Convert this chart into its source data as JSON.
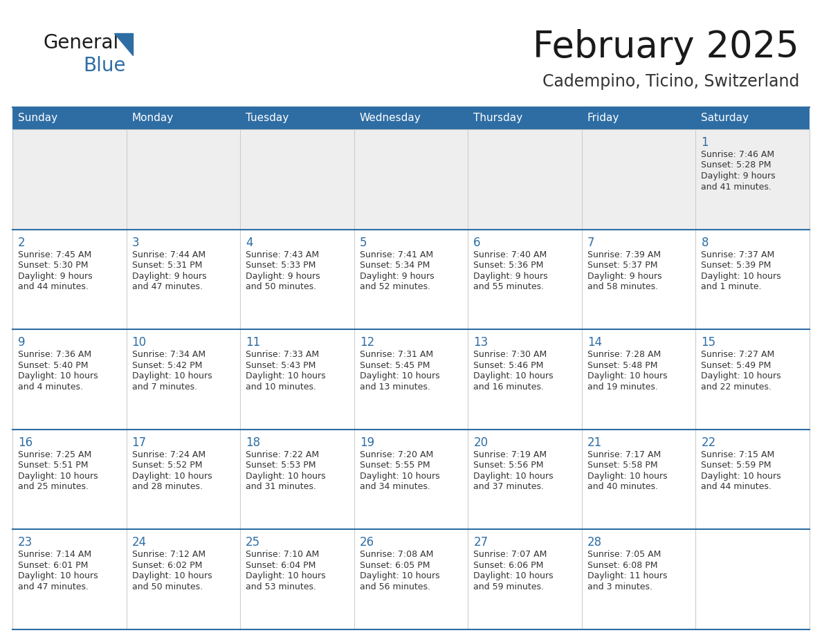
{
  "title": "February 2025",
  "subtitle": "Cadempino, Ticino, Switzerland",
  "header_bg": "#2E6DA4",
  "header_text_color": "#FFFFFF",
  "row_separator_color": "#2E6DA4",
  "cell_bg_row0": "#EEEEEE",
  "cell_bg_other": "#FFFFFF",
  "title_color": "#1a1a1a",
  "subtitle_color": "#333333",
  "day_number_color": "#2E6DA4",
  "cell_text_color": "#333333",
  "days_of_week": [
    "Sunday",
    "Monday",
    "Tuesday",
    "Wednesday",
    "Thursday",
    "Friday",
    "Saturday"
  ],
  "calendar_data": [
    [
      null,
      null,
      null,
      null,
      null,
      null,
      {
        "day": 1,
        "sunrise": "7:46 AM",
        "sunset": "5:28 PM",
        "daylight": "9 hours",
        "daylight2": "and 41 minutes."
      }
    ],
    [
      {
        "day": 2,
        "sunrise": "7:45 AM",
        "sunset": "5:30 PM",
        "daylight": "9 hours",
        "daylight2": "and 44 minutes."
      },
      {
        "day": 3,
        "sunrise": "7:44 AM",
        "sunset": "5:31 PM",
        "daylight": "9 hours",
        "daylight2": "and 47 minutes."
      },
      {
        "day": 4,
        "sunrise": "7:43 AM",
        "sunset": "5:33 PM",
        "daylight": "9 hours",
        "daylight2": "and 50 minutes."
      },
      {
        "day": 5,
        "sunrise": "7:41 AM",
        "sunset": "5:34 PM",
        "daylight": "9 hours",
        "daylight2": "and 52 minutes."
      },
      {
        "day": 6,
        "sunrise": "7:40 AM",
        "sunset": "5:36 PM",
        "daylight": "9 hours",
        "daylight2": "and 55 minutes."
      },
      {
        "day": 7,
        "sunrise": "7:39 AM",
        "sunset": "5:37 PM",
        "daylight": "9 hours",
        "daylight2": "and 58 minutes."
      },
      {
        "day": 8,
        "sunrise": "7:37 AM",
        "sunset": "5:39 PM",
        "daylight": "10 hours",
        "daylight2": "and 1 minute."
      }
    ],
    [
      {
        "day": 9,
        "sunrise": "7:36 AM",
        "sunset": "5:40 PM",
        "daylight": "10 hours",
        "daylight2": "and 4 minutes."
      },
      {
        "day": 10,
        "sunrise": "7:34 AM",
        "sunset": "5:42 PM",
        "daylight": "10 hours",
        "daylight2": "and 7 minutes."
      },
      {
        "day": 11,
        "sunrise": "7:33 AM",
        "sunset": "5:43 PM",
        "daylight": "10 hours",
        "daylight2": "and 10 minutes."
      },
      {
        "day": 12,
        "sunrise": "7:31 AM",
        "sunset": "5:45 PM",
        "daylight": "10 hours",
        "daylight2": "and 13 minutes."
      },
      {
        "day": 13,
        "sunrise": "7:30 AM",
        "sunset": "5:46 PM",
        "daylight": "10 hours",
        "daylight2": "and 16 minutes."
      },
      {
        "day": 14,
        "sunrise": "7:28 AM",
        "sunset": "5:48 PM",
        "daylight": "10 hours",
        "daylight2": "and 19 minutes."
      },
      {
        "day": 15,
        "sunrise": "7:27 AM",
        "sunset": "5:49 PM",
        "daylight": "10 hours",
        "daylight2": "and 22 minutes."
      }
    ],
    [
      {
        "day": 16,
        "sunrise": "7:25 AM",
        "sunset": "5:51 PM",
        "daylight": "10 hours",
        "daylight2": "and 25 minutes."
      },
      {
        "day": 17,
        "sunrise": "7:24 AM",
        "sunset": "5:52 PM",
        "daylight": "10 hours",
        "daylight2": "and 28 minutes."
      },
      {
        "day": 18,
        "sunrise": "7:22 AM",
        "sunset": "5:53 PM",
        "daylight": "10 hours",
        "daylight2": "and 31 minutes."
      },
      {
        "day": 19,
        "sunrise": "7:20 AM",
        "sunset": "5:55 PM",
        "daylight": "10 hours",
        "daylight2": "and 34 minutes."
      },
      {
        "day": 20,
        "sunrise": "7:19 AM",
        "sunset": "5:56 PM",
        "daylight": "10 hours",
        "daylight2": "and 37 minutes."
      },
      {
        "day": 21,
        "sunrise": "7:17 AM",
        "sunset": "5:58 PM",
        "daylight": "10 hours",
        "daylight2": "and 40 minutes."
      },
      {
        "day": 22,
        "sunrise": "7:15 AM",
        "sunset": "5:59 PM",
        "daylight": "10 hours",
        "daylight2": "and 44 minutes."
      }
    ],
    [
      {
        "day": 23,
        "sunrise": "7:14 AM",
        "sunset": "6:01 PM",
        "daylight": "10 hours",
        "daylight2": "and 47 minutes."
      },
      {
        "day": 24,
        "sunrise": "7:12 AM",
        "sunset": "6:02 PM",
        "daylight": "10 hours",
        "daylight2": "and 50 minutes."
      },
      {
        "day": 25,
        "sunrise": "7:10 AM",
        "sunset": "6:04 PM",
        "daylight": "10 hours",
        "daylight2": "and 53 minutes."
      },
      {
        "day": 26,
        "sunrise": "7:08 AM",
        "sunset": "6:05 PM",
        "daylight": "10 hours",
        "daylight2": "and 56 minutes."
      },
      {
        "day": 27,
        "sunrise": "7:07 AM",
        "sunset": "6:06 PM",
        "daylight": "10 hours",
        "daylight2": "and 59 minutes."
      },
      {
        "day": 28,
        "sunrise": "7:05 AM",
        "sunset": "6:08 PM",
        "daylight": "11 hours",
        "daylight2": "and 3 minutes."
      },
      null
    ]
  ],
  "logo_text_general": "General",
  "logo_text_blue": "Blue",
  "logo_triangle_color": "#2E6DA4"
}
